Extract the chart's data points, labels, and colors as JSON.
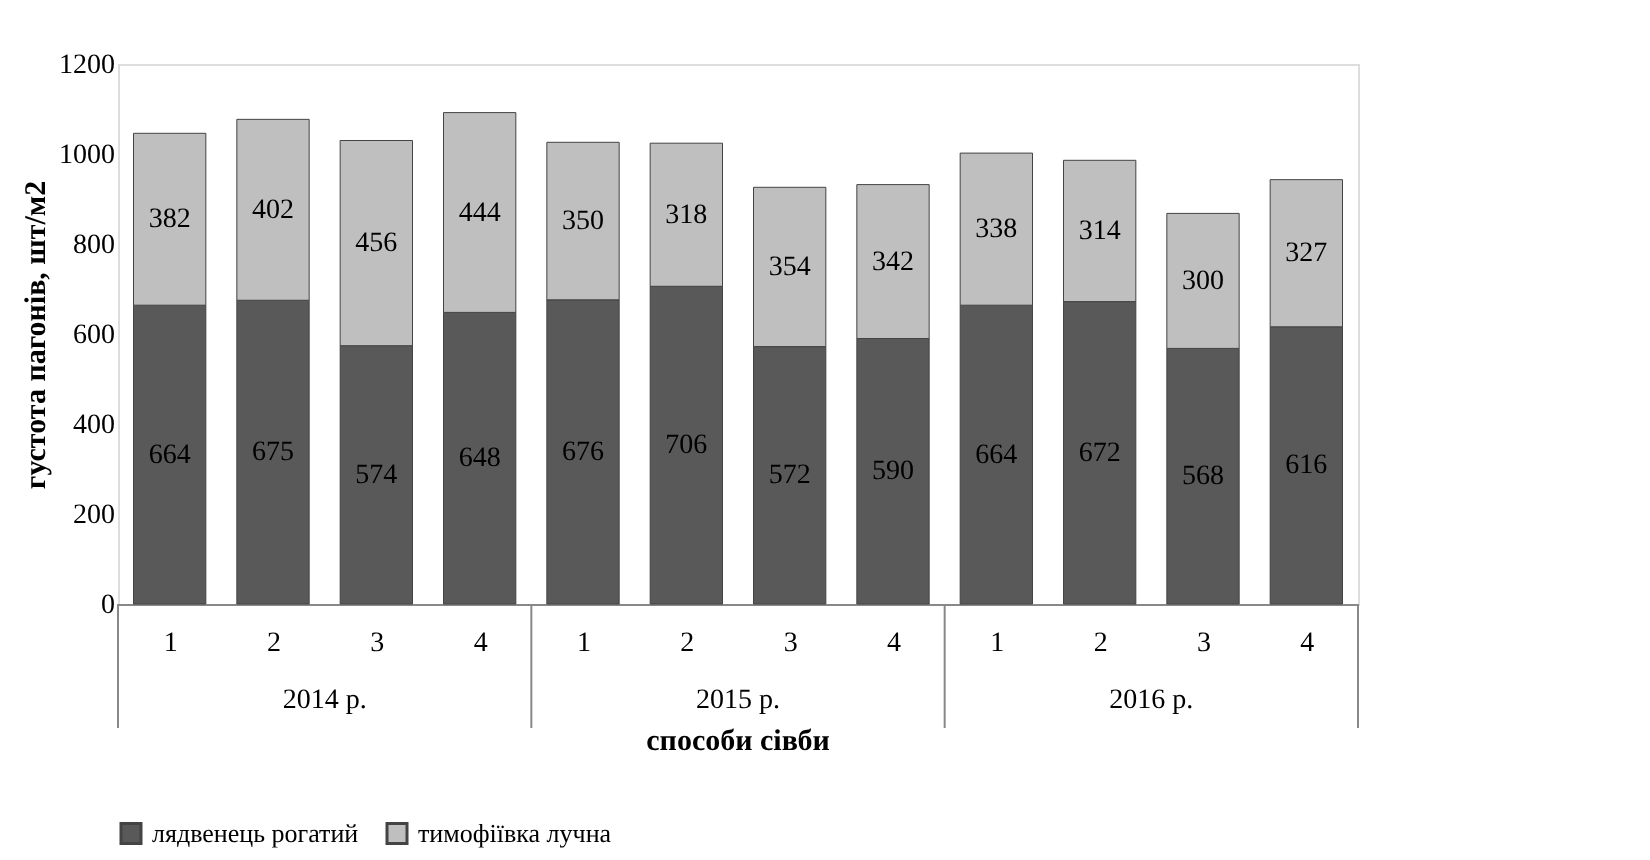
{
  "chart_data": {
    "type": "bar",
    "stacked": true,
    "categories": [
      "1",
      "2",
      "3",
      "4",
      "1",
      "2",
      "3",
      "4",
      "1",
      "2",
      "3",
      "4"
    ],
    "series": [
      {
        "name": "лядвенець рогатий",
        "color": "#595959",
        "values": [
          664,
          675,
          574,
          648,
          676,
          706,
          572,
          590,
          664,
          672,
          568,
          616
        ]
      },
      {
        "name": "тимофіївка лучна",
        "color": "#bfbfbf",
        "values": [
          382,
          402,
          456,
          444,
          350,
          318,
          354,
          342,
          338,
          314,
          300,
          327
        ]
      }
    ],
    "xlabel": "способи сівби",
    "ylabel": "густота пагонів, шт/м2",
    "annotations": [
      "2014 р.",
      "2015 р.",
      "2016 р."
    ],
    "ylim": [
      0,
      1200
    ],
    "yticks": [
      0,
      200,
      400,
      600,
      800,
      1000,
      1200
    ],
    "data_labels": true,
    "legend": "bottom",
    "grid": false
  }
}
